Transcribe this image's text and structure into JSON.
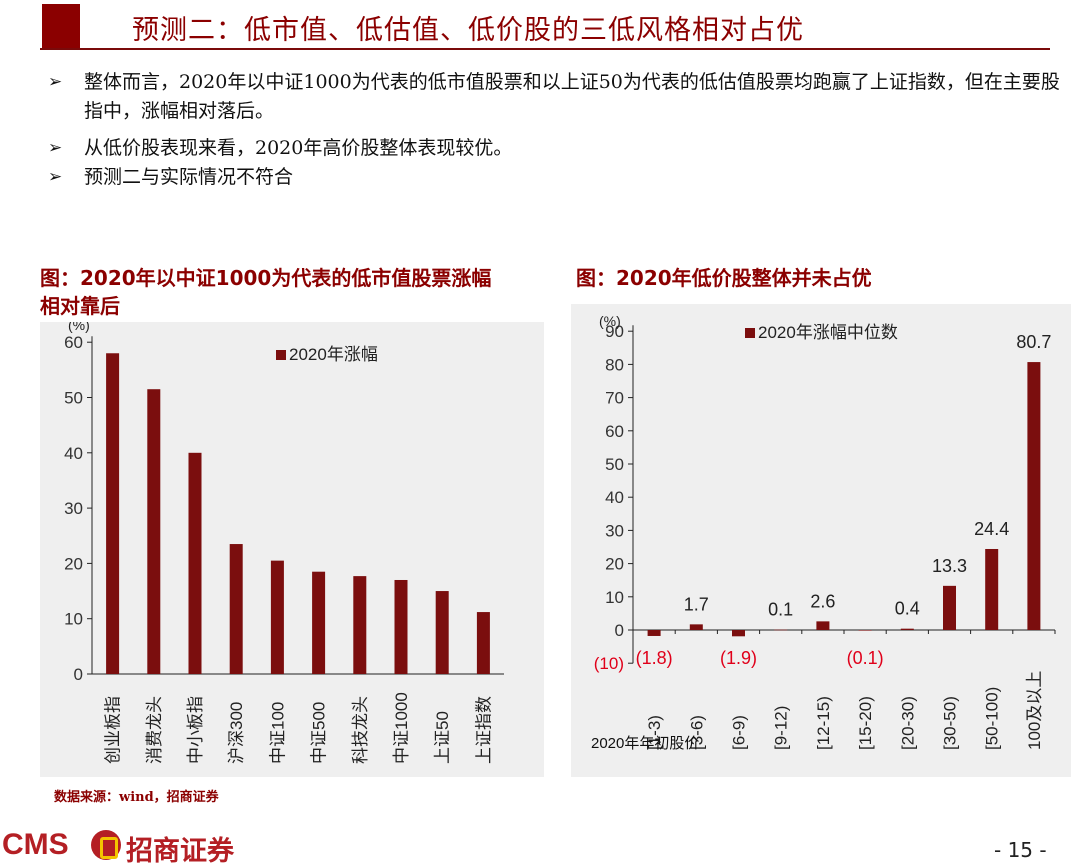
{
  "header": {
    "title": "预测二：低市值、低估值、低价股的三低风格相对占优"
  },
  "bullets": [
    {
      "text": "整体而言，2020年以中证1000为代表的低市值股票和以上证50为代表的低估值股票均跑赢了上证指数，但在主要股指中，涨幅相对落后。"
    },
    {
      "text": "从低价股表现来看，2020年高价股整体表现较优。"
    },
    {
      "text": "预测二与实际情况不符合"
    }
  ],
  "bullet_glyph": "➢",
  "panels": {
    "left_title_line1": "图：2020年以中证1000为代表的低市值股票涨幅",
    "left_title_line2": "相对靠后",
    "right_title": "图：2020年低价股整体并未占优"
  },
  "source": "数据来源：wind，招商证券",
  "footer": {
    "logo_text": "CMS",
    "logo_cn": "招商证券",
    "page": "- 15 -"
  },
  "colors": {
    "brand": "#8b0000",
    "bar": "#7b0e0e",
    "negative_label": "#e0001a"
  },
  "chart_data": [
    {
      "type": "bar",
      "title": "",
      "unit_label": "(%)",
      "xlabel": "",
      "ylabel": "",
      "ylim": [
        0,
        60
      ],
      "yticks": [
        0,
        10,
        20,
        30,
        40,
        50,
        60
      ],
      "grid": false,
      "legend_position": "top-center",
      "categories": [
        "创业板指",
        "消费龙头",
        "中小板指",
        "沪深300",
        "中证100",
        "中证500",
        "科技龙头",
        "中证1000",
        "上证50",
        "上证指数"
      ],
      "series": [
        {
          "name": "2020年涨幅",
          "values": [
            58,
            51.5,
            40,
            23.5,
            20.5,
            18.5,
            17.7,
            17,
            15,
            11.2
          ]
        }
      ]
    },
    {
      "type": "bar",
      "title": "",
      "unit_label": "(%)",
      "xlabel": "2020年年初股价",
      "ylabel": "",
      "ylim": [
        -10,
        90
      ],
      "yticks": [
        -10,
        0,
        10,
        20,
        30,
        40,
        50,
        60,
        70,
        80,
        90
      ],
      "ytick_labels": [
        "(10)",
        "0",
        "10",
        "20",
        "30",
        "40",
        "50",
        "60",
        "70",
        "80",
        "90"
      ],
      "grid": false,
      "legend_position": "top-center",
      "categories": [
        "[1-3)",
        "[3-6)",
        "[6-9)",
        "[9-12)",
        "[12-15)",
        "[15-20)",
        "[20-30)",
        "[30-50)",
        "[50-100)",
        "100及以上"
      ],
      "series": [
        {
          "name": "2020年涨幅中位数",
          "values": [
            -1.8,
            1.7,
            -1.9,
            0.1,
            2.6,
            -0.1,
            0.4,
            13.3,
            24.4,
            80.7
          ]
        }
      ],
      "data_labels": [
        "(1.8)",
        "1.7",
        "(1.9)",
        "0.1",
        "2.6",
        "(0.1)",
        "0.4",
        "13.3",
        "24.4",
        "80.7"
      ]
    }
  ]
}
